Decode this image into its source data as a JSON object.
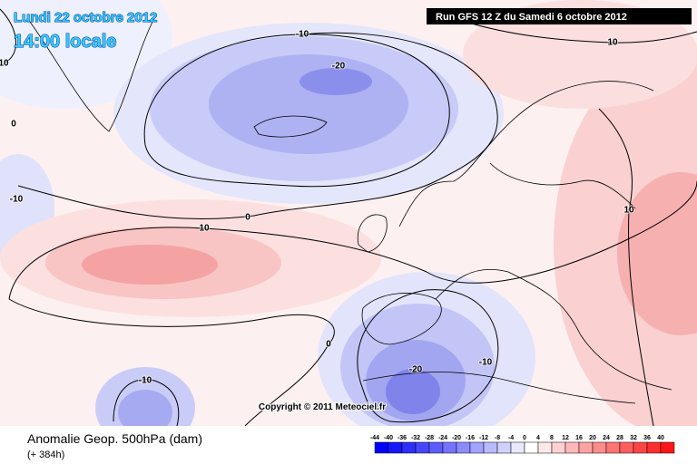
{
  "header": {
    "date": "Lundi 22 octobre 2012",
    "time": "14:00 locale",
    "run": "Run GFS 12 Z du Samedi 6 octobre 2012"
  },
  "map": {
    "contour_labels": [
      -10,
      10,
      -20,
      0,
      -10,
      10,
      0,
      0,
      -20,
      -10,
      -10,
      10,
      10
    ],
    "copyright": "Copyright © 2011 Meteociel.fr"
  },
  "footer": {
    "title": "Anomalie Geop. 500hPa (dam)",
    "lead": "(+ 384h)"
  },
  "legend": {
    "values": [
      -44,
      -40,
      -36,
      -32,
      -28,
      -24,
      -20,
      -16,
      -12,
      -8,
      -4,
      0,
      4,
      8,
      12,
      16,
      20,
      24,
      28,
      32,
      36,
      40
    ]
  }
}
